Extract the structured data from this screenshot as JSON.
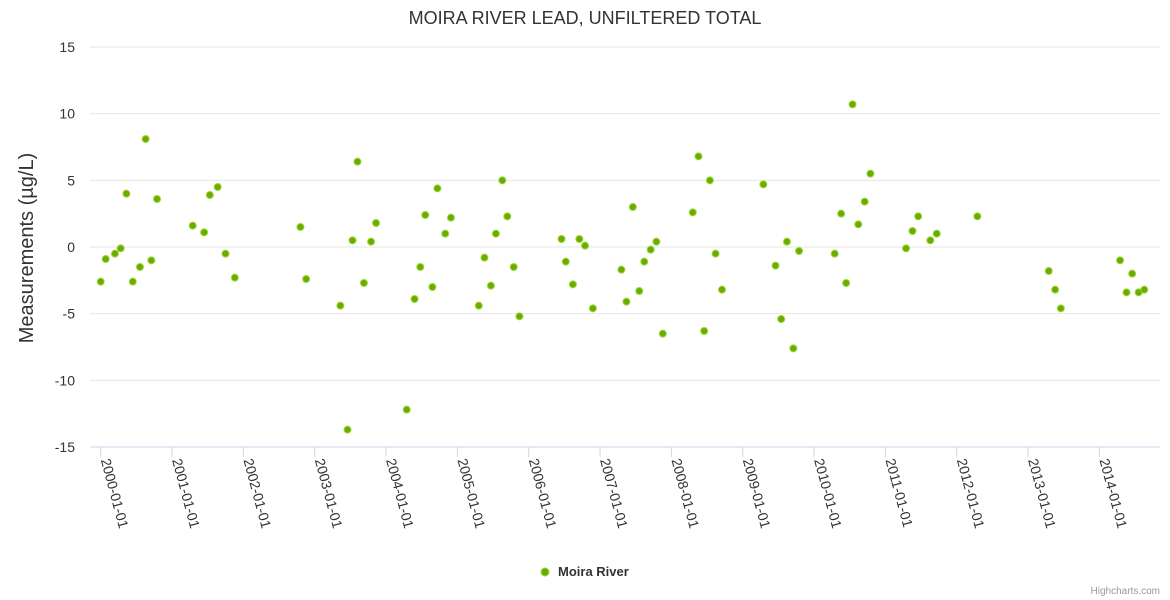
{
  "chart_data": {
    "type": "scatter",
    "title": "MOIRA RIVER LEAD, UNFILTERED TOTAL",
    "xlabel": "",
    "ylabel": "Measurements (µg/L)",
    "ylim": [
      -15,
      15
    ],
    "yticks": [
      15,
      10,
      5,
      0,
      -5,
      -10,
      -15
    ],
    "xlim": [
      1999.85,
      2014.85
    ],
    "xticks": [
      {
        "label": "2000-01-01",
        "value": 2000
      },
      {
        "label": "2001-01-01",
        "value": 2001
      },
      {
        "label": "2002-01-01",
        "value": 2002
      },
      {
        "label": "2003-01-01",
        "value": 2003
      },
      {
        "label": "2004-01-01",
        "value": 2004
      },
      {
        "label": "2005-01-01",
        "value": 2005
      },
      {
        "label": "2006-01-01",
        "value": 2006
      },
      {
        "label": "2007-01-01",
        "value": 2007
      },
      {
        "label": "2008-01-01",
        "value": 2008
      },
      {
        "label": "2009-01-01",
        "value": 2009
      },
      {
        "label": "2010-01-01",
        "value": 2010
      },
      {
        "label": "2011-01-01",
        "value": 2011
      },
      {
        "label": "2012-01-01",
        "value": 2012
      },
      {
        "label": "2013-01-01",
        "value": 2013
      },
      {
        "label": "2014-01-01",
        "value": 2014
      }
    ],
    "series": [
      {
        "name": "Moira River",
        "color": "#6aad00",
        "stroke": "#9ed63b",
        "points": [
          [
            2000.0,
            -2.6
          ],
          [
            2000.07,
            -0.9
          ],
          [
            2000.2,
            -0.5
          ],
          [
            2000.28,
            -0.1
          ],
          [
            2000.36,
            4.0
          ],
          [
            2000.45,
            -2.6
          ],
          [
            2000.55,
            -1.5
          ],
          [
            2000.63,
            8.1
          ],
          [
            2000.71,
            -1.0
          ],
          [
            2000.79,
            3.6
          ],
          [
            2001.29,
            1.6
          ],
          [
            2001.45,
            1.1
          ],
          [
            2001.53,
            3.9
          ],
          [
            2001.64,
            4.5
          ],
          [
            2001.75,
            -0.5
          ],
          [
            2001.88,
            -2.3
          ],
          [
            2002.8,
            1.5
          ],
          [
            2002.88,
            -2.4
          ],
          [
            2003.36,
            -4.4
          ],
          [
            2003.46,
            -13.7
          ],
          [
            2003.53,
            0.5
          ],
          [
            2003.6,
            6.4
          ],
          [
            2003.69,
            -2.7
          ],
          [
            2003.79,
            0.4
          ],
          [
            2003.86,
            1.8
          ],
          [
            2004.29,
            -12.2
          ],
          [
            2004.4,
            -3.9
          ],
          [
            2004.48,
            -1.5
          ],
          [
            2004.55,
            2.4
          ],
          [
            2004.65,
            -3.0
          ],
          [
            2004.72,
            4.4
          ],
          [
            2004.83,
            1.0
          ],
          [
            2004.91,
            2.2
          ],
          [
            2005.3,
            -4.4
          ],
          [
            2005.38,
            -0.8
          ],
          [
            2005.47,
            -2.9
          ],
          [
            2005.54,
            1.0
          ],
          [
            2005.63,
            5.0
          ],
          [
            2005.7,
            2.3
          ],
          [
            2005.79,
            -1.5
          ],
          [
            2005.87,
            -5.2
          ],
          [
            2006.46,
            0.6
          ],
          [
            2006.52,
            -1.1
          ],
          [
            2006.62,
            -2.8
          ],
          [
            2006.71,
            0.6
          ],
          [
            2006.79,
            0.1
          ],
          [
            2006.9,
            -4.6
          ],
          [
            2007.3,
            -1.7
          ],
          [
            2007.37,
            -4.1
          ],
          [
            2007.46,
            3.0
          ],
          [
            2007.55,
            -3.3
          ],
          [
            2007.62,
            -1.1
          ],
          [
            2007.71,
            -0.2
          ],
          [
            2007.79,
            0.4
          ],
          [
            2007.88,
            -6.5
          ],
          [
            2008.3,
            2.6
          ],
          [
            2008.38,
            6.8
          ],
          [
            2008.46,
            -6.3
          ],
          [
            2008.54,
            5.0
          ],
          [
            2008.62,
            -0.5
          ],
          [
            2008.71,
            -3.2
          ],
          [
            2009.29,
            4.7
          ],
          [
            2009.46,
            -1.4
          ],
          [
            2009.54,
            -5.4
          ],
          [
            2009.62,
            0.4
          ],
          [
            2009.71,
            -7.6
          ],
          [
            2009.79,
            -0.3
          ],
          [
            2010.29,
            -0.5
          ],
          [
            2010.38,
            2.5
          ],
          [
            2010.45,
            -2.7
          ],
          [
            2010.54,
            10.7
          ],
          [
            2010.62,
            1.7
          ],
          [
            2010.71,
            3.4
          ],
          [
            2010.79,
            5.5
          ],
          [
            2011.29,
            -0.1
          ],
          [
            2011.38,
            1.2
          ],
          [
            2011.46,
            2.3
          ],
          [
            2011.63,
            0.5
          ],
          [
            2011.72,
            1.0
          ],
          [
            2012.29,
            2.3
          ],
          [
            2013.29,
            -1.8
          ],
          [
            2013.38,
            -3.2
          ],
          [
            2013.46,
            -4.6
          ],
          [
            2014.29,
            -1.0
          ],
          [
            2014.38,
            -3.4
          ],
          [
            2014.46,
            -2.0
          ],
          [
            2014.55,
            -3.4
          ],
          [
            2014.63,
            -3.2
          ]
        ]
      }
    ],
    "legend": "bottom-center",
    "credits": "Highcharts.com"
  }
}
